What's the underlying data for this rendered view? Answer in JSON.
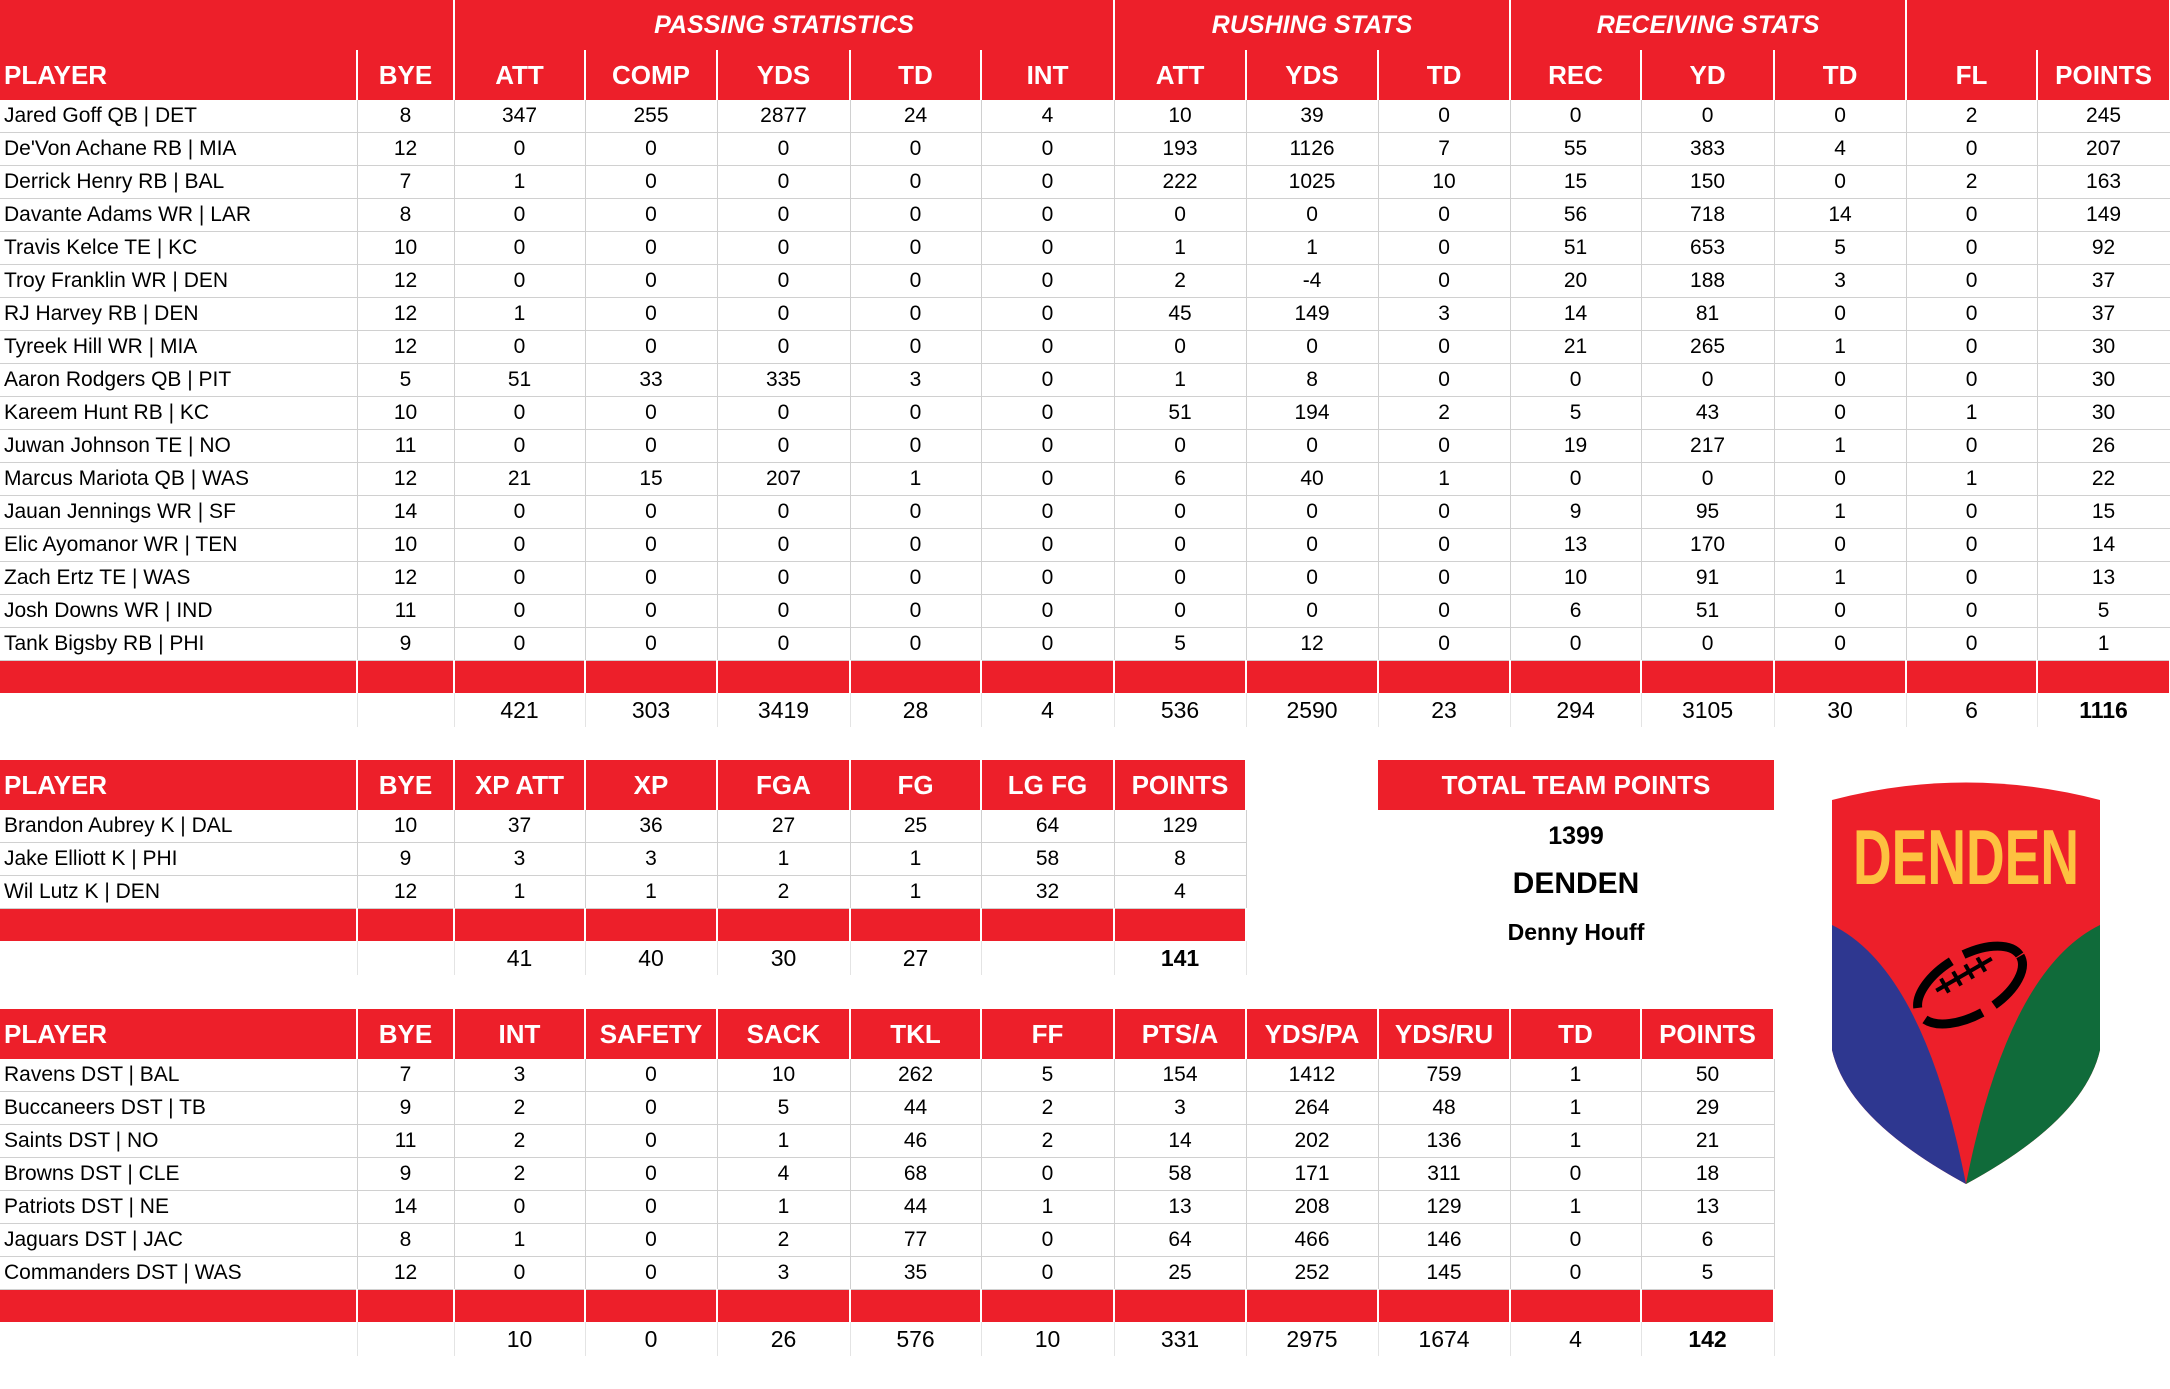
{
  "colors": {
    "accent": "#ed1f2a",
    "logo_blue": "#2e3790",
    "logo_green": "#106b3a",
    "logo_yellow": "#fdc140"
  },
  "offense": {
    "groups": [
      {
        "label": "",
        "span": 2
      },
      {
        "label": "PASSING STATISTICS",
        "span": 5
      },
      {
        "label": "RUSHING STATS",
        "span": 3
      },
      {
        "label": "RECEIVING STATS",
        "span": 3
      },
      {
        "label": "",
        "span": 2
      }
    ],
    "headers": [
      "PLAYER",
      "BYE",
      "ATT",
      "COMP",
      "YDS",
      "TD",
      "INT",
      "ATT",
      "YDS",
      "TD",
      "REC",
      "YD",
      "TD",
      "FL",
      "POINTS"
    ],
    "rows": [
      [
        "Jared Goff QB | DET",
        "8",
        "347",
        "255",
        "2877",
        "24",
        "4",
        "10",
        "39",
        "0",
        "0",
        "0",
        "0",
        "2",
        "245"
      ],
      [
        "De'Von Achane RB | MIA",
        "12",
        "0",
        "0",
        "0",
        "0",
        "0",
        "193",
        "1126",
        "7",
        "55",
        "383",
        "4",
        "0",
        "207"
      ],
      [
        "Derrick Henry RB | BAL",
        "7",
        "1",
        "0",
        "0",
        "0",
        "0",
        "222",
        "1025",
        "10",
        "15",
        "150",
        "0",
        "2",
        "163"
      ],
      [
        "Davante Adams WR | LAR",
        "8",
        "0",
        "0",
        "0",
        "0",
        "0",
        "0",
        "0",
        "0",
        "56",
        "718",
        "14",
        "0",
        "149"
      ],
      [
        "Travis Kelce TE | KC",
        "10",
        "0",
        "0",
        "0",
        "0",
        "0",
        "1",
        "1",
        "0",
        "51",
        "653",
        "5",
        "0",
        "92"
      ],
      [
        "Troy Franklin WR | DEN",
        "12",
        "0",
        "0",
        "0",
        "0",
        "0",
        "2",
        "-4",
        "0",
        "20",
        "188",
        "3",
        "0",
        "37"
      ],
      [
        "RJ Harvey RB | DEN",
        "12",
        "1",
        "0",
        "0",
        "0",
        "0",
        "45",
        "149",
        "3",
        "14",
        "81",
        "0",
        "0",
        "37"
      ],
      [
        "Tyreek Hill WR | MIA",
        "12",
        "0",
        "0",
        "0",
        "0",
        "0",
        "0",
        "0",
        "0",
        "21",
        "265",
        "1",
        "0",
        "30"
      ],
      [
        "Aaron Rodgers QB | PIT",
        "5",
        "51",
        "33",
        "335",
        "3",
        "0",
        "1",
        "8",
        "0",
        "0",
        "0",
        "0",
        "0",
        "30"
      ],
      [
        "Kareem Hunt RB | KC",
        "10",
        "0",
        "0",
        "0",
        "0",
        "0",
        "51",
        "194",
        "2",
        "5",
        "43",
        "0",
        "1",
        "30"
      ],
      [
        "Juwan Johnson TE | NO",
        "11",
        "0",
        "0",
        "0",
        "0",
        "0",
        "0",
        "0",
        "0",
        "19",
        "217",
        "1",
        "0",
        "26"
      ],
      [
        "Marcus Mariota QB | WAS",
        "12",
        "21",
        "15",
        "207",
        "1",
        "0",
        "6",
        "40",
        "1",
        "0",
        "0",
        "0",
        "1",
        "22"
      ],
      [
        "Jauan Jennings WR | SF",
        "14",
        "0",
        "0",
        "0",
        "0",
        "0",
        "0",
        "0",
        "0",
        "9",
        "95",
        "1",
        "0",
        "15"
      ],
      [
        "Elic Ayomanor WR | TEN",
        "10",
        "0",
        "0",
        "0",
        "0",
        "0",
        "0",
        "0",
        "0",
        "13",
        "170",
        "0",
        "0",
        "14"
      ],
      [
        "Zach Ertz TE | WAS",
        "12",
        "0",
        "0",
        "0",
        "0",
        "0",
        "0",
        "0",
        "0",
        "10",
        "91",
        "1",
        "0",
        "13"
      ],
      [
        "Josh Downs WR | IND",
        "11",
        "0",
        "0",
        "0",
        "0",
        "0",
        "0",
        "0",
        "0",
        "6",
        "51",
        "0",
        "0",
        "5"
      ],
      [
        "Tank Bigsby RB | PHI",
        "9",
        "0",
        "0",
        "0",
        "0",
        "0",
        "5",
        "12",
        "0",
        "0",
        "0",
        "0",
        "0",
        "1"
      ]
    ],
    "totals": [
      "",
      "",
      "421",
      "303",
      "3419",
      "28",
      "4",
      "536",
      "2590",
      "23",
      "294",
      "3105",
      "30",
      "6",
      "1116"
    ]
  },
  "kickers": {
    "headers": [
      "PLAYER",
      "BYE",
      "XP ATT",
      "XP",
      "FGA",
      "FG",
      "LG FG",
      "POINTS"
    ],
    "rows": [
      [
        "Brandon Aubrey K | DAL",
        "10",
        "37",
        "36",
        "27",
        "25",
        "64",
        "129"
      ],
      [
        "Jake Elliott K | PHI",
        "9",
        "3",
        "3",
        "1",
        "1",
        "58",
        "8"
      ],
      [
        "Wil Lutz K | DEN",
        "12",
        "1",
        "1",
        "2",
        "1",
        "32",
        "4"
      ]
    ],
    "totals": [
      "",
      "",
      "41",
      "40",
      "30",
      "27",
      "",
      "141"
    ]
  },
  "defense": {
    "headers": [
      "PLAYER",
      "BYE",
      "INT",
      "SAFETY",
      "SACK",
      "TKL",
      "FF",
      "PTS/A",
      "YDS/PA",
      "YDS/RU",
      "TD",
      "POINTS"
    ],
    "rows": [
      [
        "Ravens DST | BAL",
        "7",
        "3",
        "0",
        "10",
        "262",
        "5",
        "154",
        "1412",
        "759",
        "1",
        "50"
      ],
      [
        "Buccaneers DST | TB",
        "9",
        "2",
        "0",
        "5",
        "44",
        "2",
        "3",
        "264",
        "48",
        "1",
        "29"
      ],
      [
        "Saints DST | NO",
        "11",
        "2",
        "0",
        "1",
        "46",
        "2",
        "14",
        "202",
        "136",
        "1",
        "21"
      ],
      [
        "Browns DST | CLE",
        "9",
        "2",
        "0",
        "4",
        "68",
        "0",
        "58",
        "171",
        "311",
        "0",
        "18"
      ],
      [
        "Patriots DST | NE",
        "14",
        "0",
        "0",
        "1",
        "44",
        "1",
        "13",
        "208",
        "129",
        "1",
        "13"
      ],
      [
        "Jaguars DST | JAC",
        "8",
        "1",
        "0",
        "2",
        "77",
        "0",
        "64",
        "466",
        "146",
        "0",
        "6"
      ],
      [
        "Commanders DST | WAS",
        "12",
        "0",
        "0",
        "3",
        "35",
        "0",
        "25",
        "252",
        "145",
        "0",
        "5"
      ]
    ],
    "totals": [
      "",
      "",
      "10",
      "0",
      "26",
      "576",
      "10",
      "331",
      "2975",
      "1674",
      "4",
      "142"
    ]
  },
  "team": {
    "header": "TOTAL TEAM POINTS",
    "points": "1399",
    "name": "DENDEN",
    "owner": "Denny Houff",
    "logo_text": "DENDEN"
  }
}
